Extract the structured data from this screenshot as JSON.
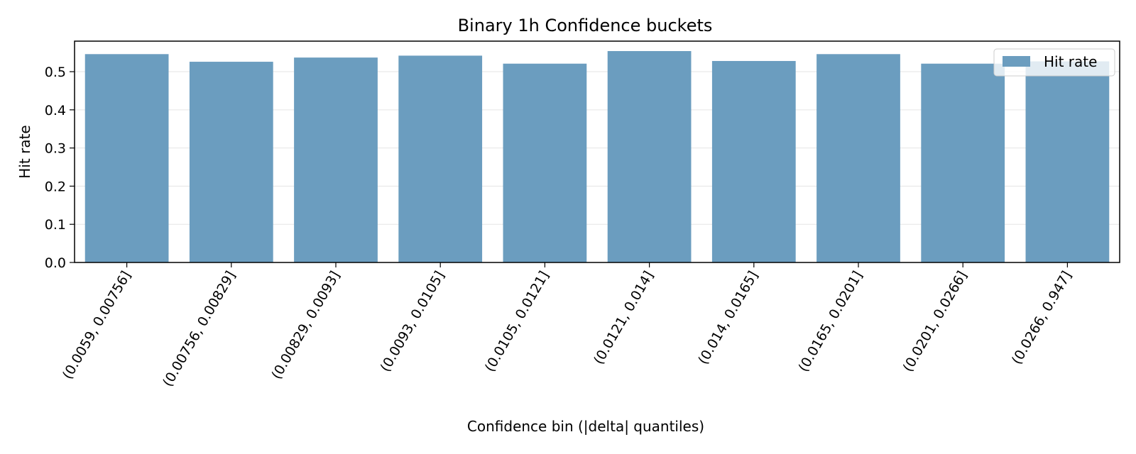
{
  "chart_data": {
    "type": "bar",
    "title": "Binary 1h Confidence buckets",
    "xlabel": "Confidence bin (|delta| quantiles)",
    "ylabel": "Hit rate",
    "categories": [
      "(0.0059, 0.00756]",
      "(0.00756, 0.00829]",
      "(0.00829, 0.0093]",
      "(0.0093, 0.0105]",
      "(0.0105, 0.0121]",
      "(0.0121, 0.014]",
      "(0.014, 0.0165]",
      "(0.0165, 0.0201]",
      "(0.0201, 0.0266]",
      "(0.0266, 0.947]"
    ],
    "series": [
      {
        "name": "Hit rate",
        "values": [
          0.546,
          0.526,
          0.537,
          0.542,
          0.521,
          0.554,
          0.528,
          0.546,
          0.521,
          0.527
        ]
      }
    ],
    "ylim": [
      0,
      0.58
    ],
    "yticks": [
      0.0,
      0.1,
      0.2,
      0.3,
      0.4,
      0.5
    ],
    "ytick_labels": [
      "0.0",
      "0.1",
      "0.2",
      "0.3",
      "0.4",
      "0.5"
    ],
    "grid": "y",
    "legend_position": "top-right",
    "colors": {
      "bar": "#6b9dbf",
      "grid": "#e5e5e5",
      "axes": "#000000"
    }
  }
}
